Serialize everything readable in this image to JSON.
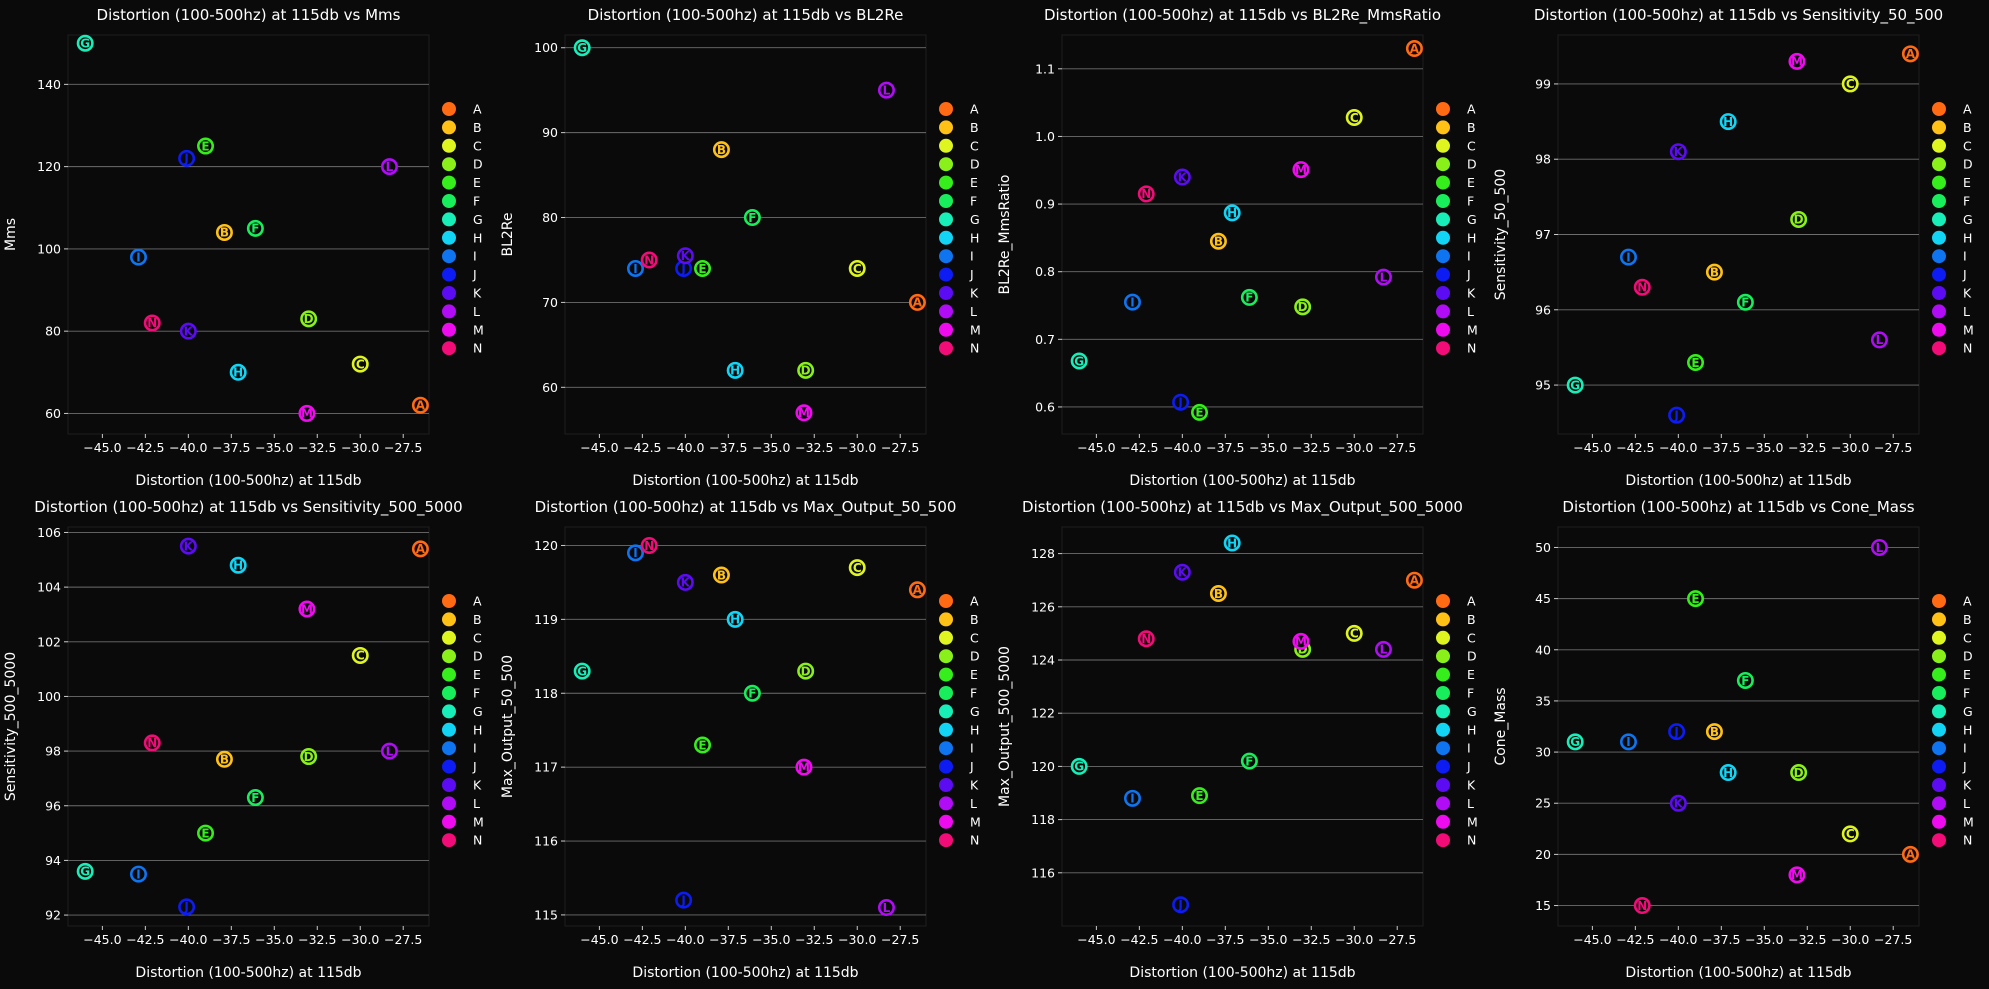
{
  "colors": {
    "A": "#ff6a13",
    "B": "#ffc116",
    "C": "#dff520",
    "D": "#8af01a",
    "E": "#35ee1c",
    "F": "#18ee5c",
    "G": "#17eeb8",
    "H": "#12d5f5",
    "I": "#0f74f0",
    "J": "#0c1cf2",
    "K": "#5b0cf2",
    "L": "#b00cf5",
    "M": "#ee0cee",
    "N": "#f20c78"
  },
  "legend_labels": [
    "A",
    "B",
    "C",
    "D",
    "E",
    "F",
    "G",
    "H",
    "I",
    "J",
    "K",
    "L",
    "M",
    "N"
  ],
  "chart_data": [
    {
      "type": "scatter",
      "title": "Distortion (100-500hz) at 115db vs Mms",
      "xlabel": "Distortion (100-500hz) at 115db",
      "ylabel": "Mms",
      "xlim": [
        -47.0,
        -26.0
      ],
      "ylim": [
        55,
        152
      ],
      "xticks": [
        -45.0,
        -42.5,
        -40.0,
        -37.5,
        -35.0,
        -32.5,
        -30.0,
        -27.5
      ],
      "yticks": [
        60,
        80,
        100,
        120,
        140
      ],
      "xticklabels": [
        "−45.0",
        "−42.5",
        "−40.0",
        "−37.5",
        "−35.0",
        "−32.5",
        "−30.0",
        "−27.5"
      ],
      "yticklabels": [
        "60",
        "80",
        "100",
        "120",
        "140"
      ],
      "points": [
        {
          "label": "A",
          "x": -26.5,
          "y": 62
        },
        {
          "label": "B",
          "x": -37.9,
          "y": 104
        },
        {
          "label": "C",
          "x": -30.0,
          "y": 72
        },
        {
          "label": "D",
          "x": -33.0,
          "y": 83
        },
        {
          "label": "E",
          "x": -39.0,
          "y": 125
        },
        {
          "label": "F",
          "x": -36.1,
          "y": 105
        },
        {
          "label": "G",
          "x": -46.0,
          "y": 150
        },
        {
          "label": "H",
          "x": -37.1,
          "y": 70
        },
        {
          "label": "I",
          "x": -42.9,
          "y": 98
        },
        {
          "label": "J",
          "x": -40.1,
          "y": 122
        },
        {
          "label": "K",
          "x": -40.0,
          "y": 80
        },
        {
          "label": "L",
          "x": -28.3,
          "y": 120
        },
        {
          "label": "M",
          "x": -33.1,
          "y": 60
        },
        {
          "label": "N",
          "x": -42.1,
          "y": 82
        }
      ]
    },
    {
      "type": "scatter",
      "title": "Distortion (100-500hz) at 115db vs BL2Re",
      "xlabel": "Distortion (100-500hz) at 115db",
      "ylabel": "BL2Re",
      "xlim": [
        -47.0,
        -26.0
      ],
      "ylim": [
        54.5,
        101.5
      ],
      "xticks": [
        -45.0,
        -42.5,
        -40.0,
        -37.5,
        -35.0,
        -32.5,
        -30.0,
        -27.5
      ],
      "yticks": [
        60,
        70,
        80,
        90,
        100
      ],
      "xticklabels": [
        "−45.0",
        "−42.5",
        "−40.0",
        "−37.5",
        "−35.0",
        "−32.5",
        "−30.0",
        "−27.5"
      ],
      "yticklabels": [
        "60",
        "70",
        "80",
        "90",
        "100"
      ],
      "points": [
        {
          "label": "A",
          "x": -26.5,
          "y": 70
        },
        {
          "label": "B",
          "x": -37.9,
          "y": 88
        },
        {
          "label": "C",
          "x": -30.0,
          "y": 74
        },
        {
          "label": "D",
          "x": -33.0,
          "y": 62
        },
        {
          "label": "E",
          "x": -39.0,
          "y": 74
        },
        {
          "label": "F",
          "x": -36.1,
          "y": 80
        },
        {
          "label": "G",
          "x": -46.0,
          "y": 100
        },
        {
          "label": "H",
          "x": -37.1,
          "y": 62
        },
        {
          "label": "I",
          "x": -42.9,
          "y": 74
        },
        {
          "label": "J",
          "x": -40.1,
          "y": 74
        },
        {
          "label": "K",
          "x": -40.0,
          "y": 75.5
        },
        {
          "label": "L",
          "x": -28.3,
          "y": 95
        },
        {
          "label": "M",
          "x": -33.1,
          "y": 57
        },
        {
          "label": "N",
          "x": -42.1,
          "y": 75
        }
      ]
    },
    {
      "type": "scatter",
      "title": "Distortion (100-500hz) at 115db vs BL2Re_MmsRatio",
      "xlabel": "Distortion (100-500hz) at 115db",
      "ylabel": "BL2Re_MmsRatio",
      "xlim": [
        -47.0,
        -26.0
      ],
      "ylim": [
        0.56,
        1.15
      ],
      "xticks": [
        -45.0,
        -42.5,
        -40.0,
        -37.5,
        -35.0,
        -32.5,
        -30.0,
        -27.5
      ],
      "yticks": [
        0.6,
        0.7,
        0.8,
        0.9,
        1.0,
        1.1
      ],
      "xticklabels": [
        "−45.0",
        "−42.5",
        "−40.0",
        "−37.5",
        "−35.0",
        "−32.5",
        "−30.0",
        "−27.5"
      ],
      "yticklabels": [
        "0.6",
        "0.7",
        "0.8",
        "0.9",
        "1.0",
        "1.1"
      ],
      "points": [
        {
          "label": "A",
          "x": -26.5,
          "y": 1.13
        },
        {
          "label": "B",
          "x": -37.9,
          "y": 0.845
        },
        {
          "label": "C",
          "x": -30.0,
          "y": 1.028
        },
        {
          "label": "D",
          "x": -33.0,
          "y": 0.748
        },
        {
          "label": "E",
          "x": -39.0,
          "y": 0.592
        },
        {
          "label": "F",
          "x": -36.1,
          "y": 0.762
        },
        {
          "label": "G",
          "x": -46.0,
          "y": 0.668
        },
        {
          "label": "H",
          "x": -37.1,
          "y": 0.887
        },
        {
          "label": "I",
          "x": -42.9,
          "y": 0.755
        },
        {
          "label": "J",
          "x": -40.1,
          "y": 0.607
        },
        {
          "label": "K",
          "x": -40.0,
          "y": 0.94
        },
        {
          "label": "L",
          "x": -28.3,
          "y": 0.792
        },
        {
          "label": "M",
          "x": -33.1,
          "y": 0.951
        },
        {
          "label": "N",
          "x": -42.1,
          "y": 0.915
        }
      ]
    },
    {
      "type": "scatter",
      "title": "Distortion (100-500hz) at 115db vs Sensitivity_50_500",
      "xlabel": "Distortion (100-500hz) at 115db",
      "ylabel": "Sensitivity_50_500",
      "xlim": [
        -47.0,
        -26.0
      ],
      "ylim": [
        94.35,
        99.65
      ],
      "xticks": [
        -45.0,
        -42.5,
        -40.0,
        -37.5,
        -35.0,
        -32.5,
        -30.0,
        -27.5
      ],
      "yticks": [
        95,
        96,
        97,
        98,
        99
      ],
      "xticklabels": [
        "−45.0",
        "−42.5",
        "−40.0",
        "−37.5",
        "−35.0",
        "−32.5",
        "−30.0",
        "−27.5"
      ],
      "yticklabels": [
        "95",
        "96",
        "97",
        "98",
        "99"
      ],
      "points": [
        {
          "label": "A",
          "x": -26.5,
          "y": 99.4
        },
        {
          "label": "B",
          "x": -37.9,
          "y": 96.5
        },
        {
          "label": "C",
          "x": -30.0,
          "y": 99.0
        },
        {
          "label": "D",
          "x": -33.0,
          "y": 97.2
        },
        {
          "label": "E",
          "x": -39.0,
          "y": 95.3
        },
        {
          "label": "F",
          "x": -36.1,
          "y": 96.1
        },
        {
          "label": "G",
          "x": -46.0,
          "y": 95.0
        },
        {
          "label": "H",
          "x": -37.1,
          "y": 98.5
        },
        {
          "label": "I",
          "x": -42.9,
          "y": 96.7
        },
        {
          "label": "J",
          "x": -40.1,
          "y": 94.6
        },
        {
          "label": "K",
          "x": -40.0,
          "y": 98.1
        },
        {
          "label": "L",
          "x": -28.3,
          "y": 95.6
        },
        {
          "label": "M",
          "x": -33.1,
          "y": 99.3
        },
        {
          "label": "N",
          "x": -42.1,
          "y": 96.3
        }
      ]
    },
    {
      "type": "scatter",
      "title": "Distortion (100-500hz) at 115db vs Sensitivity_500_5000",
      "xlabel": "Distortion (100-500hz) at 115db",
      "ylabel": "Sensitivity_500_5000",
      "xlim": [
        -47.0,
        -26.0
      ],
      "ylim": [
        91.6,
        106.2
      ],
      "xticks": [
        -45.0,
        -42.5,
        -40.0,
        -37.5,
        -35.0,
        -32.5,
        -30.0,
        -27.5
      ],
      "yticks": [
        92,
        94,
        96,
        98,
        100,
        102,
        104,
        106
      ],
      "xticklabels": [
        "−45.0",
        "−42.5",
        "−40.0",
        "−37.5",
        "−35.0",
        "−32.5",
        "−30.0",
        "−27.5"
      ],
      "yticklabels": [
        "92",
        "94",
        "96",
        "98",
        "100",
        "102",
        "104",
        "106"
      ],
      "points": [
        {
          "label": "A",
          "x": -26.5,
          "y": 105.4
        },
        {
          "label": "B",
          "x": -37.9,
          "y": 97.7
        },
        {
          "label": "C",
          "x": -30.0,
          "y": 101.5
        },
        {
          "label": "D",
          "x": -33.0,
          "y": 97.8
        },
        {
          "label": "E",
          "x": -39.0,
          "y": 95.0
        },
        {
          "label": "F",
          "x": -36.1,
          "y": 96.3
        },
        {
          "label": "G",
          "x": -46.0,
          "y": 93.6
        },
        {
          "label": "H",
          "x": -37.1,
          "y": 104.8
        },
        {
          "label": "I",
          "x": -42.9,
          "y": 93.5
        },
        {
          "label": "J",
          "x": -40.1,
          "y": 92.3
        },
        {
          "label": "K",
          "x": -40.0,
          "y": 105.5
        },
        {
          "label": "L",
          "x": -28.3,
          "y": 98.0
        },
        {
          "label": "M",
          "x": -33.1,
          "y": 103.2
        },
        {
          "label": "N",
          "x": -42.1,
          "y": 98.3
        }
      ]
    },
    {
      "type": "scatter",
      "title": "Distortion (100-500hz) at 115db vs Max_Output_50_500",
      "xlabel": "Distortion (100-500hz) at 115db",
      "ylabel": "Max_Output_50_500",
      "xlim": [
        -47.0,
        -26.0
      ],
      "ylim": [
        114.85,
        120.25
      ],
      "xticks": [
        -45.0,
        -42.5,
        -40.0,
        -37.5,
        -35.0,
        -32.5,
        -30.0,
        -27.5
      ],
      "yticks": [
        115,
        116,
        117,
        118,
        119,
        120
      ],
      "xticklabels": [
        "−45.0",
        "−42.5",
        "−40.0",
        "−37.5",
        "−35.0",
        "−32.5",
        "−30.0",
        "−27.5"
      ],
      "yticklabels": [
        "115",
        "116",
        "117",
        "118",
        "119",
        "120"
      ],
      "points": [
        {
          "label": "A",
          "x": -26.5,
          "y": 119.4
        },
        {
          "label": "B",
          "x": -37.9,
          "y": 119.6
        },
        {
          "label": "C",
          "x": -30.0,
          "y": 119.7
        },
        {
          "label": "D",
          "x": -33.0,
          "y": 118.3
        },
        {
          "label": "E",
          "x": -39.0,
          "y": 117.3
        },
        {
          "label": "F",
          "x": -36.1,
          "y": 118.0
        },
        {
          "label": "G",
          "x": -46.0,
          "y": 118.3
        },
        {
          "label": "H",
          "x": -37.1,
          "y": 119.0
        },
        {
          "label": "I",
          "x": -42.9,
          "y": 119.9
        },
        {
          "label": "J",
          "x": -40.1,
          "y": 115.2
        },
        {
          "label": "K",
          "x": -40.0,
          "y": 119.5
        },
        {
          "label": "L",
          "x": -28.3,
          "y": 115.1
        },
        {
          "label": "M",
          "x": -33.1,
          "y": 117.0
        },
        {
          "label": "N",
          "x": -42.1,
          "y": 120.0
        }
      ]
    },
    {
      "type": "scatter",
      "title": "Distortion (100-500hz) at 115db vs Max_Output_500_5000",
      "xlabel": "Distortion (100-500hz) at 115db",
      "ylabel": "Max_Output_500_5000",
      "xlim": [
        -47.0,
        -26.0
      ],
      "ylim": [
        114.0,
        129.0
      ],
      "xticks": [
        -45.0,
        -42.5,
        -40.0,
        -37.5,
        -35.0,
        -32.5,
        -30.0,
        -27.5
      ],
      "yticks": [
        116,
        118,
        120,
        122,
        124,
        126,
        128
      ],
      "xticklabels": [
        "−45.0",
        "−42.5",
        "−40.0",
        "−37.5",
        "−35.0",
        "−32.5",
        "−30.0",
        "−27.5"
      ],
      "yticklabels": [
        "116",
        "118",
        "120",
        "122",
        "124",
        "126",
        "128"
      ],
      "points": [
        {
          "label": "A",
          "x": -26.5,
          "y": 127.0
        },
        {
          "label": "B",
          "x": -37.9,
          "y": 126.5
        },
        {
          "label": "C",
          "x": -30.0,
          "y": 125.0
        },
        {
          "label": "D",
          "x": -33.0,
          "y": 124.4
        },
        {
          "label": "E",
          "x": -39.0,
          "y": 118.9
        },
        {
          "label": "F",
          "x": -36.1,
          "y": 120.2
        },
        {
          "label": "G",
          "x": -46.0,
          "y": 120.0
        },
        {
          "label": "H",
          "x": -37.1,
          "y": 128.4
        },
        {
          "label": "I",
          "x": -42.9,
          "y": 118.8
        },
        {
          "label": "J",
          "x": -40.1,
          "y": 114.8
        },
        {
          "label": "K",
          "x": -40.0,
          "y": 127.3
        },
        {
          "label": "L",
          "x": -28.3,
          "y": 124.4
        },
        {
          "label": "M",
          "x": -33.1,
          "y": 124.7
        },
        {
          "label": "N",
          "x": -42.1,
          "y": 124.8
        }
      ]
    },
    {
      "type": "scatter",
      "title": "Distortion (100-500hz) at 115db vs Cone_Mass",
      "xlabel": "Distortion (100-500hz) at 115db",
      "ylabel": "Cone_Mass",
      "xlim": [
        -47.0,
        -26.0
      ],
      "ylim": [
        13.0,
        52.0
      ],
      "xticks": [
        -45.0,
        -42.5,
        -40.0,
        -37.5,
        -35.0,
        -32.5,
        -30.0,
        -27.5
      ],
      "yticks": [
        15,
        20,
        25,
        30,
        35,
        40,
        45,
        50
      ],
      "xticklabels": [
        "−45.0",
        "−42.5",
        "−40.0",
        "−37.5",
        "−35.0",
        "−32.5",
        "−30.0",
        "−27.5"
      ],
      "yticklabels": [
        "15",
        "20",
        "25",
        "30",
        "35",
        "40",
        "45",
        "50"
      ],
      "points": [
        {
          "label": "A",
          "x": -26.5,
          "y": 20
        },
        {
          "label": "B",
          "x": -37.9,
          "y": 32
        },
        {
          "label": "C",
          "x": -30.0,
          "y": 22
        },
        {
          "label": "D",
          "x": -33.0,
          "y": 28
        },
        {
          "label": "E",
          "x": -39.0,
          "y": 45
        },
        {
          "label": "F",
          "x": -36.1,
          "y": 37
        },
        {
          "label": "G",
          "x": -46.0,
          "y": 31
        },
        {
          "label": "H",
          "x": -37.1,
          "y": 28
        },
        {
          "label": "I",
          "x": -42.9,
          "y": 31
        },
        {
          "label": "J",
          "x": -40.1,
          "y": 32
        },
        {
          "label": "K",
          "x": -40.0,
          "y": 25
        },
        {
          "label": "L",
          "x": -28.3,
          "y": 50
        },
        {
          "label": "M",
          "x": -33.1,
          "y": 18
        },
        {
          "label": "N",
          "x": -42.1,
          "y": 15
        }
      ]
    }
  ]
}
